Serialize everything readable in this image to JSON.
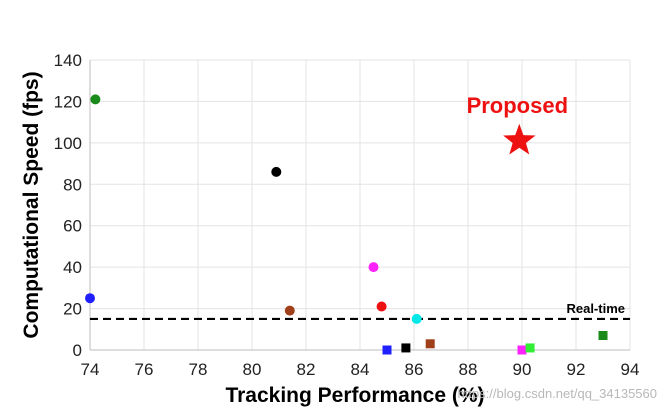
{
  "chart_data": {
    "type": "scatter",
    "title": "",
    "xlabel": "Tracking Performance (%)",
    "ylabel": "Computational Speed (fps)",
    "xlim": [
      74,
      94
    ],
    "ylim": [
      0,
      140
    ],
    "xticks": [
      "74",
      "76",
      "78",
      "80",
      "82",
      "84",
      "86",
      "88",
      "90",
      "92",
      "94"
    ],
    "yticks": [
      "0",
      "20",
      "40",
      "60",
      "80",
      "100",
      "120",
      "140"
    ],
    "grid": true,
    "points": [
      {
        "x": 74.2,
        "y": 121,
        "marker": "circle",
        "color": "#1a8a1a"
      },
      {
        "x": 74.0,
        "y": 25,
        "marker": "circle",
        "color": "#1f1fff"
      },
      {
        "x": 80.9,
        "y": 86,
        "marker": "circle",
        "color": "#000000"
      },
      {
        "x": 81.4,
        "y": 19,
        "marker": "circle",
        "color": "#a0401a"
      },
      {
        "x": 84.5,
        "y": 40,
        "marker": "circle",
        "color": "#ff22ff"
      },
      {
        "x": 84.8,
        "y": 21,
        "marker": "circle",
        "color": "#ee1111"
      },
      {
        "x": 86.1,
        "y": 15,
        "marker": "circle",
        "color": "#00e8e8"
      },
      {
        "x": 85.0,
        "y": 0,
        "marker": "square",
        "color": "#1f1fff"
      },
      {
        "x": 85.7,
        "y": 1,
        "marker": "square",
        "color": "#000000"
      },
      {
        "x": 86.6,
        "y": 3,
        "marker": "square",
        "color": "#a0401a"
      },
      {
        "x": 90.0,
        "y": 0,
        "marker": "square",
        "color": "#ff22ff"
      },
      {
        "x": 90.3,
        "y": 1,
        "marker": "square",
        "color": "#33ee33"
      },
      {
        "x": 93.0,
        "y": 7,
        "marker": "square",
        "color": "#1a8a1a"
      }
    ],
    "highlight": {
      "x": 89.9,
      "y": 101,
      "marker": "star",
      "color": "#ee1111",
      "label": "Proposed"
    },
    "reference_line": {
      "y": 15,
      "label": "Real-time",
      "style": "dashed",
      "color": "#000000"
    }
  },
  "watermark": "https://blog.csdn.net/qq_34135560"
}
